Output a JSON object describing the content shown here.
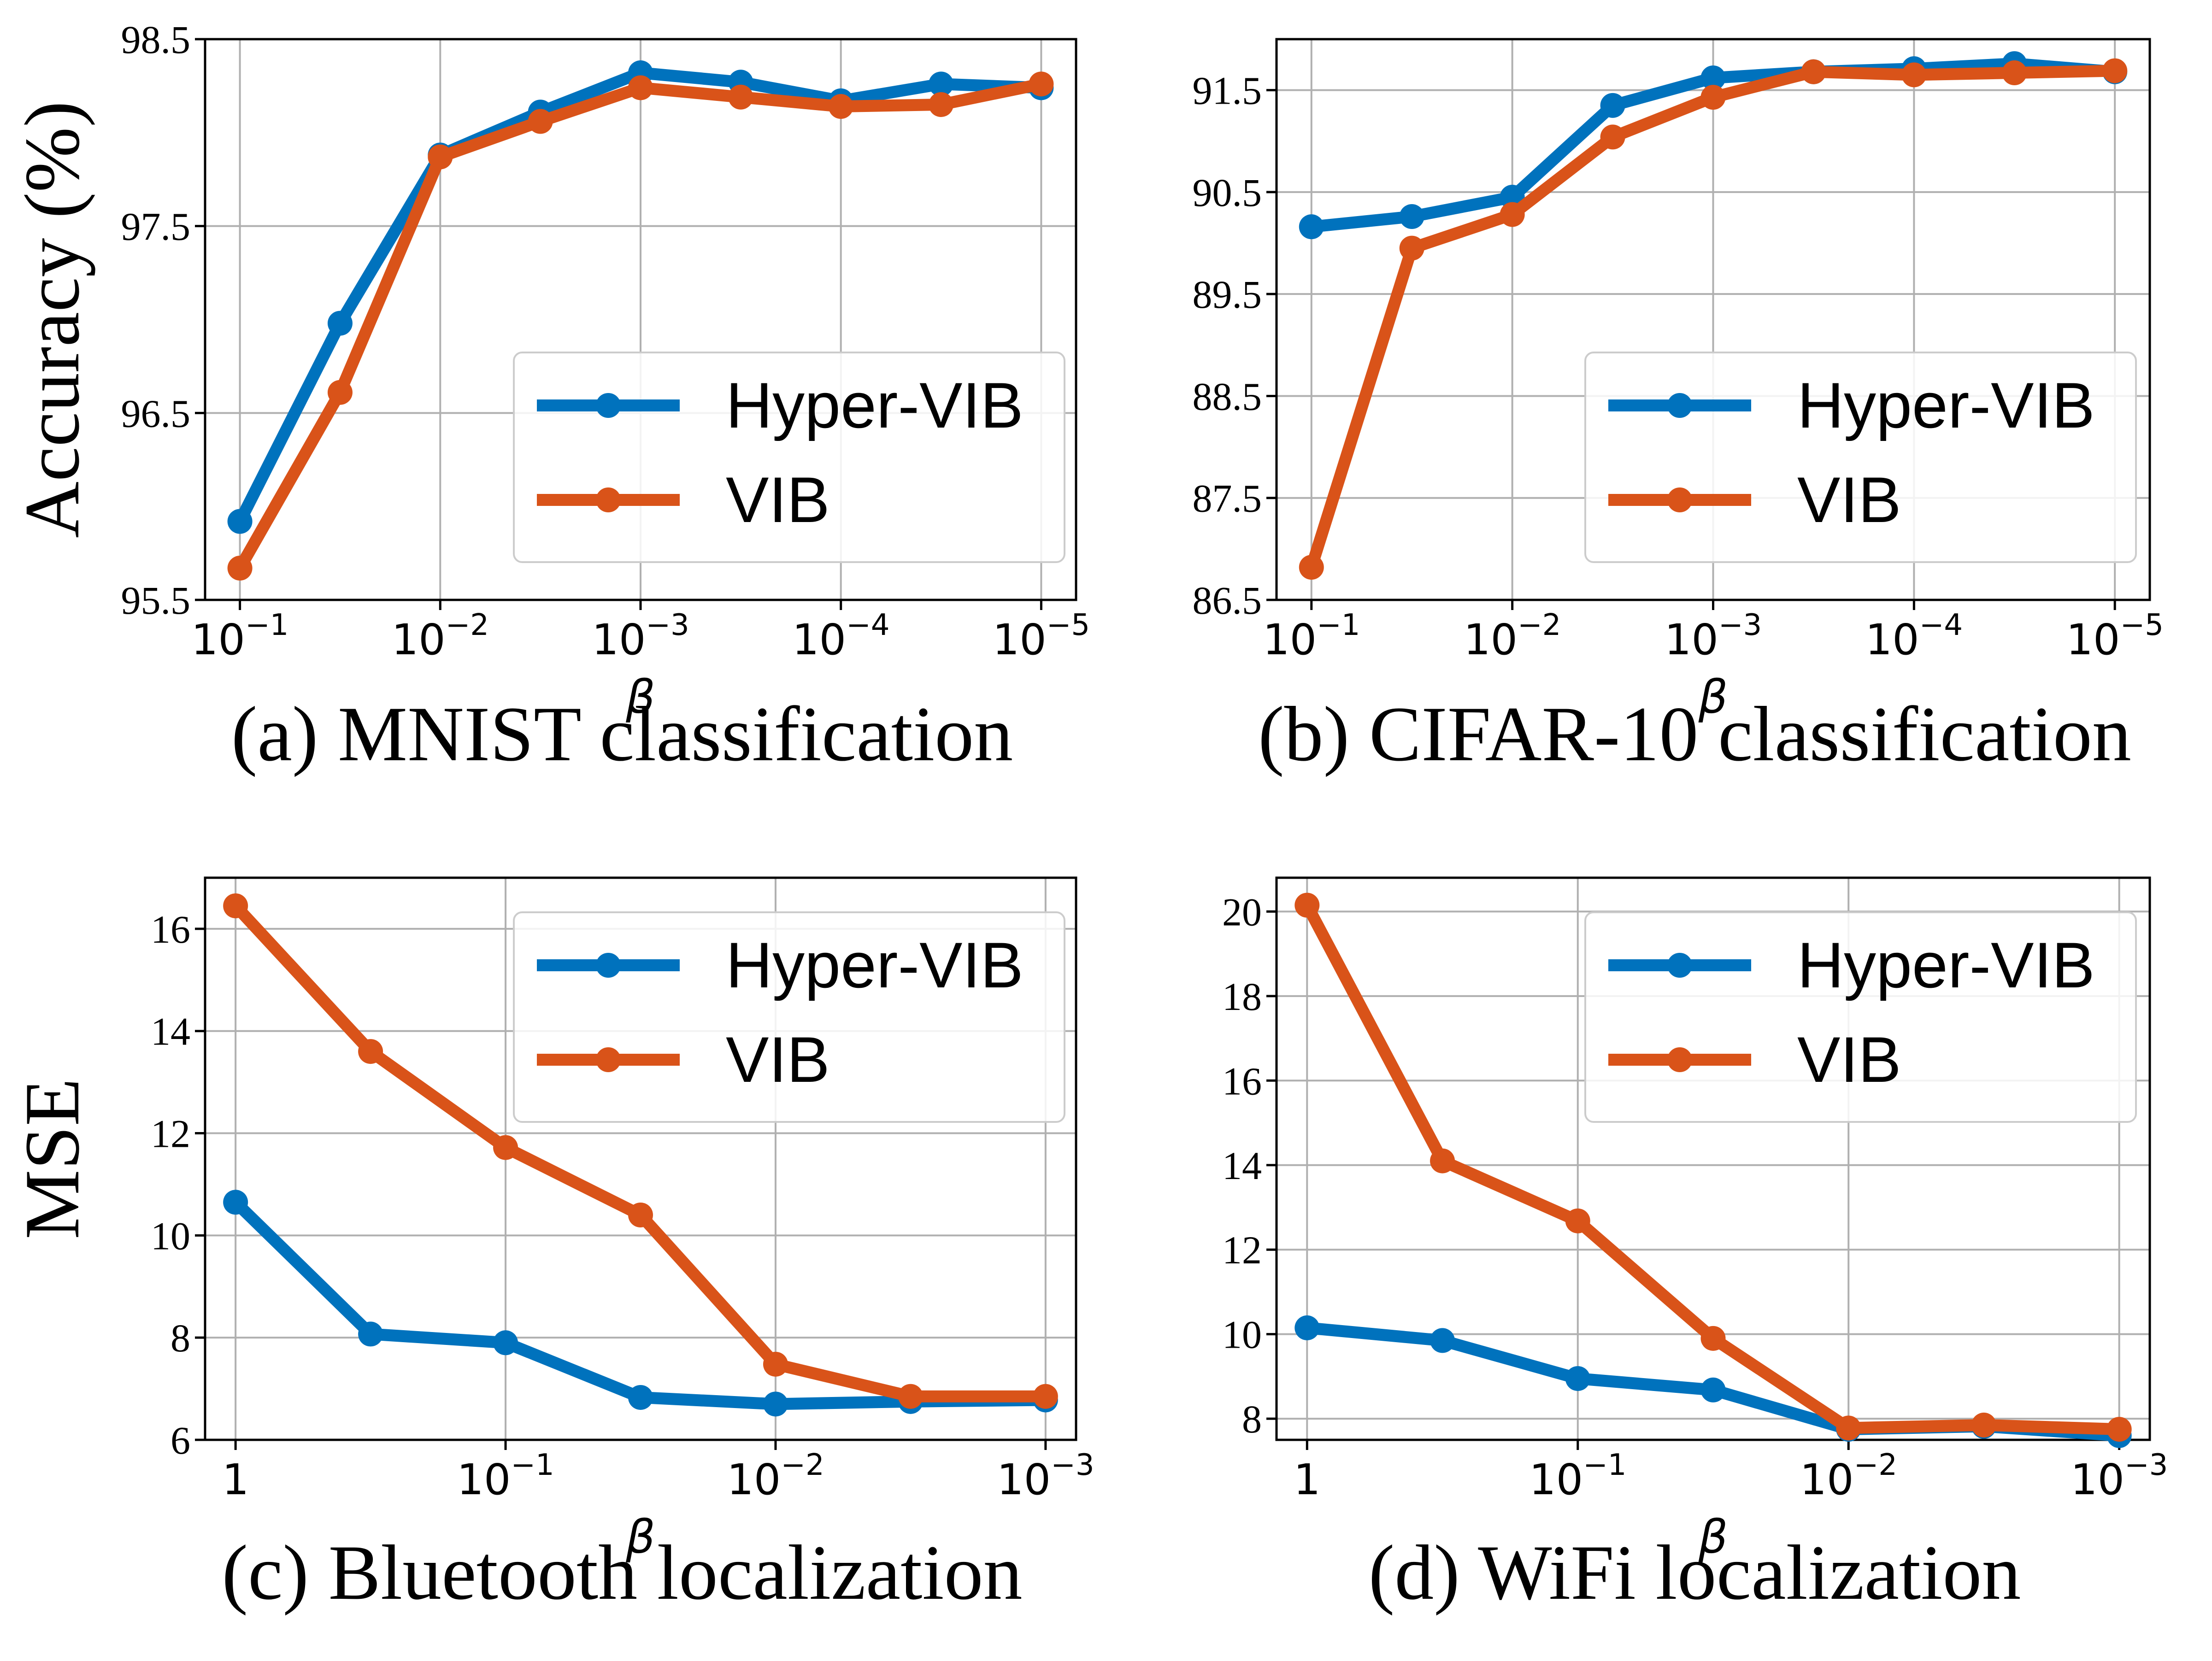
{
  "colors": {
    "hyper_vib": "#0072BD",
    "vib": "#D95319",
    "grid": "#b0b0b0",
    "axis": "#000000"
  },
  "chart_data": [
    {
      "id": "a",
      "type": "line",
      "caption": "(a) MNIST classification",
      "ylabel": "Accuracy (%)",
      "xlabel": "β",
      "x_scale": "log-reversed",
      "x": [
        0.1,
        0.03162,
        0.01,
        0.003162,
        0.001,
        0.0003162,
        0.0001,
        3.162e-05,
        1e-05
      ],
      "x_ticks": [
        {
          "base": "10",
          "exp": "−1"
        },
        {
          "base": "10",
          "exp": "−2"
        },
        {
          "base": "10",
          "exp": "−3"
        },
        {
          "base": "10",
          "exp": "−4"
        },
        {
          "base": "10",
          "exp": "−5"
        }
      ],
      "y_ticks": [
        "95.5",
        "96.5",
        "97.5",
        "98.5"
      ],
      "ylim": [
        95.5,
        98.5
      ],
      "legend": "lower-right",
      "series": [
        {
          "name": "Hyper-VIB",
          "values": [
            95.92,
            96.98,
            97.88,
            98.11,
            98.32,
            98.27,
            98.17,
            98.26,
            98.24
          ]
        },
        {
          "name": "VIB",
          "values": [
            95.67,
            96.61,
            97.87,
            98.06,
            98.24,
            98.19,
            98.14,
            98.15,
            98.26
          ]
        }
      ]
    },
    {
      "id": "b",
      "type": "line",
      "caption": "(b) CIFAR-10 classification",
      "ylabel": "",
      "xlabel": "β",
      "x_scale": "log-reversed",
      "x": [
        0.1,
        0.03162,
        0.01,
        0.003162,
        0.001,
        0.0003162,
        0.0001,
        3.162e-05,
        1e-05
      ],
      "x_ticks": [
        {
          "base": "10",
          "exp": "−1"
        },
        {
          "base": "10",
          "exp": "−2"
        },
        {
          "base": "10",
          "exp": "−3"
        },
        {
          "base": "10",
          "exp": "−4"
        },
        {
          "base": "10",
          "exp": "−5"
        }
      ],
      "y_ticks": [
        "86.5",
        "87.5",
        "88.5",
        "89.5",
        "90.5",
        "91.5"
      ],
      "ylim": [
        86.5,
        92.0
      ],
      "legend": "lower-right",
      "series": [
        {
          "name": "Hyper-VIB",
          "values": [
            90.16,
            90.26,
            90.45,
            91.35,
            91.62,
            91.68,
            91.71,
            91.76,
            91.68
          ]
        },
        {
          "name": "VIB",
          "values": [
            86.82,
            89.95,
            90.28,
            91.04,
            91.43,
            91.68,
            91.65,
            91.67,
            91.69
          ]
        }
      ]
    },
    {
      "id": "c",
      "type": "line",
      "caption": "(c) Bluetooth localization",
      "ylabel": "MSE",
      "xlabel": "β",
      "x_scale": "log-reversed",
      "x": [
        1,
        0.3162,
        0.1,
        0.03162,
        0.01,
        0.003162,
        0.001
      ],
      "x_ticks": [
        {
          "base": "1",
          "exp": ""
        },
        {
          "base": "10",
          "exp": "−1"
        },
        {
          "base": "10",
          "exp": "−2"
        },
        {
          "base": "10",
          "exp": "−3"
        }
      ],
      "y_ticks": [
        "6",
        "8",
        "10",
        "12",
        "14",
        "16"
      ],
      "ylim": [
        6,
        17
      ],
      "legend": "upper-right",
      "series": [
        {
          "name": "Hyper-VIB",
          "values": [
            10.65,
            8.07,
            7.9,
            6.83,
            6.7,
            6.75,
            6.78
          ]
        },
        {
          "name": "VIB",
          "values": [
            16.45,
            13.6,
            11.72,
            10.4,
            7.48,
            6.85,
            6.85
          ]
        }
      ]
    },
    {
      "id": "d",
      "type": "line",
      "caption": "(d) WiFi localization",
      "ylabel": "",
      "xlabel": "β",
      "x_scale": "log-reversed",
      "x": [
        1,
        0.3162,
        0.1,
        0.03162,
        0.01,
        0.003162,
        0.001
      ],
      "x_ticks": [
        {
          "base": "1",
          "exp": ""
        },
        {
          "base": "10",
          "exp": "−1"
        },
        {
          "base": "10",
          "exp": "−2"
        },
        {
          "base": "10",
          "exp": "−3"
        }
      ],
      "y_ticks": [
        "8",
        "10",
        "12",
        "14",
        "16",
        "18",
        "20"
      ],
      "ylim": [
        7.5,
        20.8
      ],
      "legend": "upper-right",
      "series": [
        {
          "name": "Hyper-VIB",
          "values": [
            10.15,
            9.85,
            8.95,
            8.68,
            7.75,
            7.82,
            7.6
          ]
        },
        {
          "name": "VIB",
          "values": [
            20.15,
            14.1,
            12.68,
            9.9,
            7.78,
            7.85,
            7.75
          ]
        }
      ]
    }
  ]
}
